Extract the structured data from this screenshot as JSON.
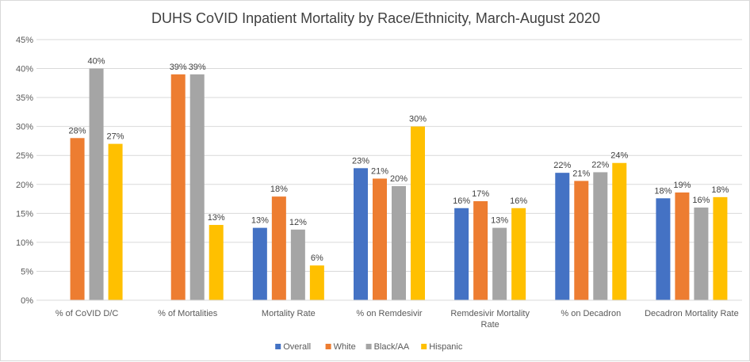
{
  "chart_data": {
    "type": "bar",
    "title": "DUHS CoVID Inpatient Mortality by Race/Ethnicity, March-August 2020",
    "xlabel": "",
    "ylabel": "",
    "ylim": [
      0,
      45
    ],
    "yticks": [
      "0%",
      "5%",
      "10%",
      "15%",
      "20%",
      "25%",
      "30%",
      "35%",
      "40%",
      "45%"
    ],
    "categories": [
      [
        "% of CoVID D/C"
      ],
      [
        "% of Mortalities"
      ],
      [
        "Mortality Rate"
      ],
      [
        "% on Remdesivir"
      ],
      [
        "Remdesivir Mortality",
        "Rate"
      ],
      [
        "% on Decadron"
      ],
      [
        "Decadron Mortality Rate"
      ]
    ],
    "series": [
      {
        "name": "Overall",
        "color": "#4472c4",
        "values": [
          null,
          null,
          12.5,
          22.8,
          15.9,
          22.0,
          17.6
        ],
        "labels": [
          "",
          "",
          "13%",
          "23%",
          "16%",
          "22%",
          "18%"
        ]
      },
      {
        "name": "White",
        "color": "#ed7d31",
        "values": [
          28.0,
          39.0,
          17.9,
          21.0,
          17.1,
          20.6,
          18.6
        ],
        "labels": [
          "28%",
          "39%",
          "18%",
          "21%",
          "17%",
          "21%",
          "19%"
        ]
      },
      {
        "name": "Black/AA",
        "color": "#a5a5a5",
        "values": [
          40.0,
          39.0,
          12.2,
          19.7,
          12.5,
          22.1,
          16.0
        ],
        "labels": [
          "40%",
          "39%",
          "12%",
          "20%",
          "13%",
          "22%",
          "16%"
        ]
      },
      {
        "name": "Hispanic",
        "color": "#ffc000",
        "values": [
          27.0,
          13.0,
          6.0,
          30.0,
          15.9,
          23.7,
          17.8
        ],
        "labels": [
          "27%",
          "13%",
          "6%",
          "30%",
          "16%",
          "24%",
          "18%"
        ]
      }
    ],
    "grid": true,
    "legend": "bottom"
  }
}
